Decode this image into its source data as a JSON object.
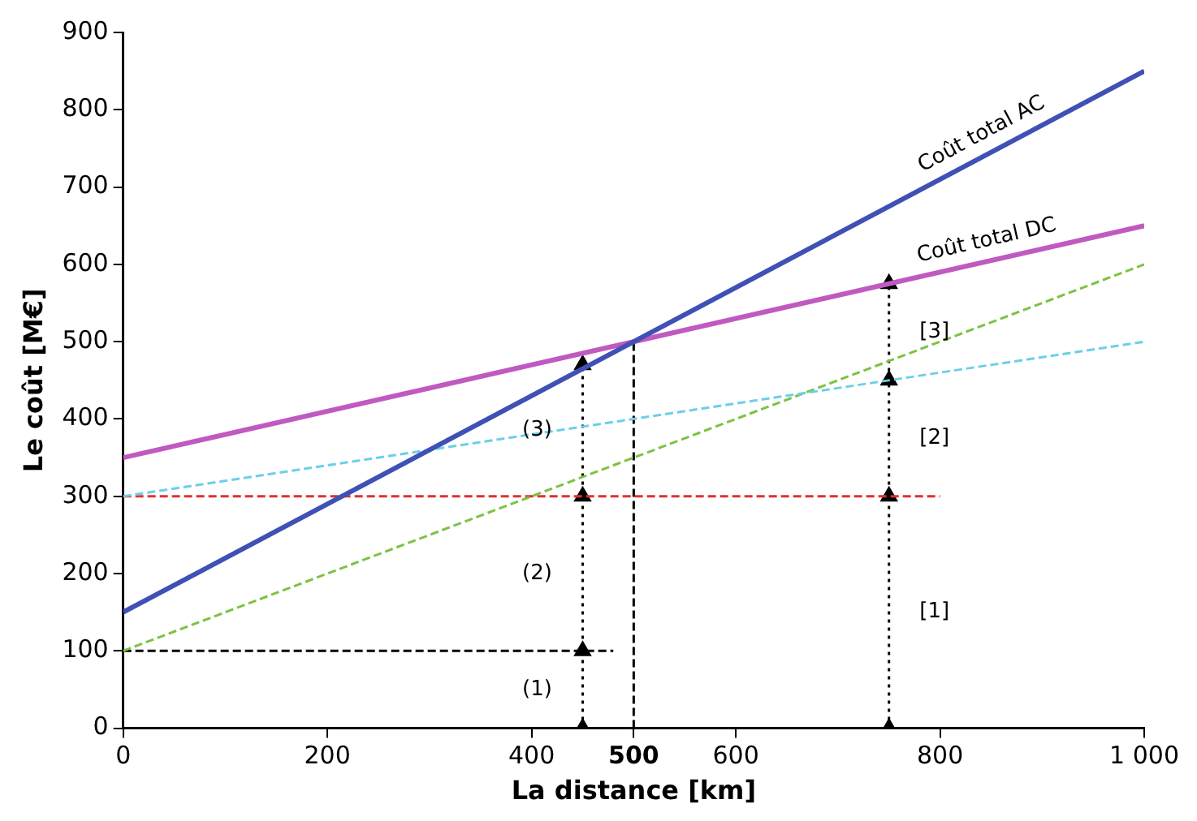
{
  "chart_data": {
    "type": "line",
    "xlabel": "La distance [km]",
    "ylabel": "Le coût [M€]",
    "xlim": [
      0,
      1000
    ],
    "ylim": [
      0,
      900
    ],
    "xticks": [
      0,
      200,
      400,
      {
        "value": 500,
        "label": "500"
      },
      600,
      800,
      {
        "value": 1000,
        "label": "1 000"
      }
    ],
    "yticks": [
      0,
      100,
      200,
      300,
      400,
      500,
      600,
      700,
      800,
      900
    ],
    "grid": false,
    "legend": false,
    "marker": "none",
    "line_style": "solid",
    "series": [
      {
        "name": "Coût total AC",
        "color": "#3f51b5",
        "x": [
          0,
          1000
        ],
        "values": [
          150,
          850
        ]
      },
      {
        "name": "Coût total DC",
        "color": "#c05ac0",
        "x": [
          0,
          1000
        ],
        "values": [
          350,
          650
        ]
      },
      {
        "color": "#6ccfe8",
        "x": [
          0,
          1000
        ],
        "values": [
          300,
          500
        ],
        "line_style": "dashed"
      },
      {
        "color": "#7cc242",
        "x": [
          0,
          1000
        ],
        "values": [
          100,
          600
        ],
        "line_style": "dashed"
      },
      {
        "color": "#e03030",
        "x": [
          0,
          800
        ],
        "values": [
          300,
          300
        ],
        "line_style": "dashed"
      },
      {
        "color": "#000000",
        "x": [
          0,
          480
        ],
        "values": [
          100,
          100
        ],
        "line_style": "dashed"
      },
      {
        "color": "#000000",
        "x": [
          500,
          500
        ],
        "values": [
          0,
          500
        ],
        "line_style": "dashed"
      },
      {
        "color": "#000000",
        "x": [
          450,
          450,
          450,
          450
        ],
        "values": [
          0,
          100,
          300,
          470
        ],
        "line_style": "dotted",
        "marker": "triangle"
      },
      {
        "color": "#000000",
        "x": [
          750,
          750,
          750,
          750
        ],
        "values": [
          0,
          300,
          450,
          575
        ],
        "line_style": "dotted",
        "marker": "triangle"
      }
    ],
    "annotations": [
      "(1)",
      "(2)",
      "(3)",
      "[1]",
      "[2]",
      "[3]"
    ]
  }
}
